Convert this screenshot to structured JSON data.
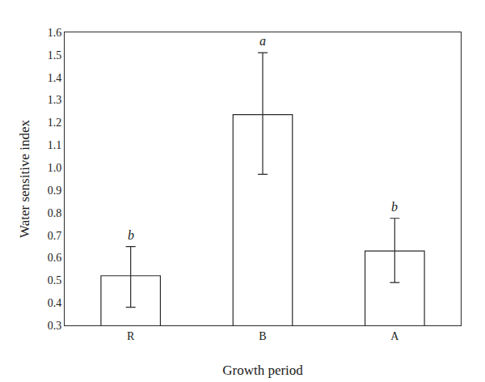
{
  "chart_data": {
    "type": "bar",
    "xlabel": "Growth period",
    "ylabel": "Water sensitive index",
    "categories": [
      "R",
      "B",
      "A"
    ],
    "values": [
      0.52,
      1.235,
      0.63
    ],
    "error_upper": [
      0.13,
      0.275,
      0.145
    ],
    "error_lower": [
      0.14,
      0.265,
      0.14
    ],
    "annotations": [
      {
        "category": "R",
        "text": "b"
      },
      {
        "category": "B",
        "text": "a"
      },
      {
        "category": "A",
        "text": "b"
      }
    ],
    "color": "#ffffff",
    "ylim": [
      0.3,
      1.6
    ],
    "yticks": [
      0.3,
      0.4,
      0.5,
      0.6,
      0.7,
      0.8,
      0.9,
      {
        "value": 1,
        "label": "1.0"
      },
      1.1,
      1.2,
      1.3,
      1.4,
      1.5,
      1.6
    ],
    "grid": false
  }
}
